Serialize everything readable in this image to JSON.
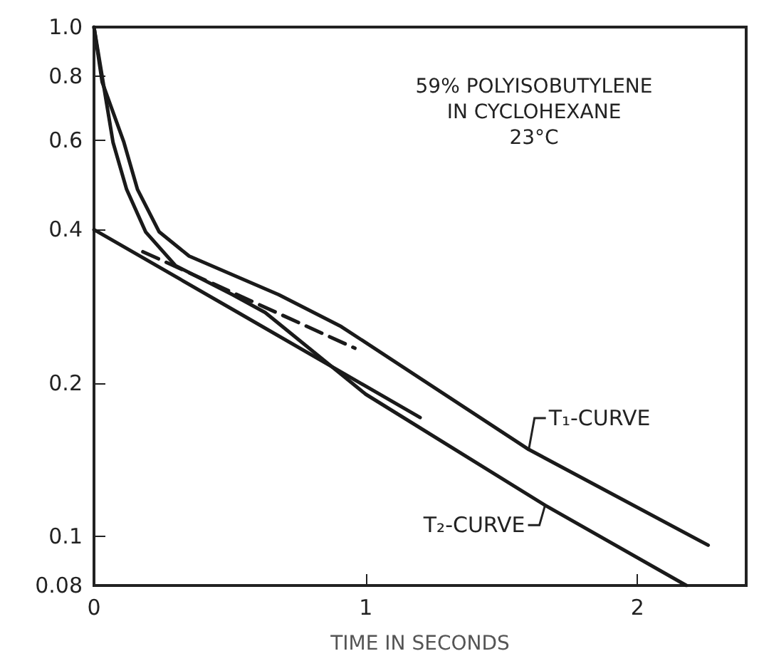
{
  "chart_data": {
    "type": "line",
    "title": "59% POLYISOBUTYLENE\nIN CYCLOHEXANE\n23°C",
    "xlabel": "TIME IN SECONDS",
    "xlim": [
      0,
      2.4
    ],
    "xticks": [
      0,
      1,
      2
    ],
    "ylim": [
      0.08,
      1
    ],
    "yticks": [
      0.08,
      0.1,
      0.2,
      0.4,
      0.6,
      0.8,
      {
        "value": 1,
        "label": "1.0"
      }
    ],
    "log": "y",
    "grid": false,
    "marker": "none",
    "series": [
      {
        "color": "#1a1a1a",
        "x": [
          0,
          0.03,
          0.11,
          0.16,
          0.24,
          0.35,
          0.68,
          0.91,
          1.6,
          2.26
        ],
        "values": [
          1,
          0.78,
          0.594,
          0.48,
          0.396,
          0.355,
          0.298,
          0.258,
          0.148,
          0.096
        ]
      },
      {
        "color": "#1a1a1a",
        "x": [
          0,
          0.03,
          0.07,
          0.12,
          0.19,
          0.3,
          0.51,
          0.63,
          1.0,
          1.66,
          2.18
        ],
        "values": [
          1,
          0.8,
          0.594,
          0.48,
          0.396,
          0.34,
          0.298,
          0.275,
          0.19,
          0.115,
          0.08
        ]
      },
      {
        "color": "#1a1a1a",
        "x": [
          0,
          0.53,
          1.2
        ],
        "values": [
          0.4,
          0.275,
          0.171
        ]
      },
      {
        "color": "#1a1a1a",
        "line_style": "dashed",
        "x": [
          0.18,
          0.96
        ],
        "values": [
          0.362,
          0.234
        ]
      }
    ],
    "annotations": [
      {
        "text": "T₁-CURVE",
        "x": 1.6,
        "y": 0.148
      },
      {
        "text": "T₂-CURVE",
        "x": 1.66,
        "y": 0.115
      }
    ]
  }
}
